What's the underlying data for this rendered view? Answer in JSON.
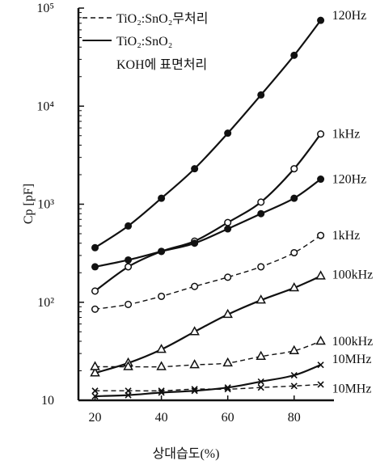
{
  "chart_data": {
    "type": "line",
    "xlabel": "상대습도(%)",
    "ylabel": "Cp [pF]",
    "x_ticks": [
      20,
      40,
      60,
      80
    ],
    "y_ticks": [
      {
        "value": 10,
        "label": "10"
      },
      {
        "value": 100,
        "label": "10²"
      },
      {
        "value": 1000,
        "label": "10³"
      },
      {
        "value": 10000,
        "label": "10⁴"
      },
      {
        "value": 100000,
        "label": "10⁵"
      }
    ],
    "xlim": [
      15,
      92
    ],
    "ylim": [
      10,
      100000
    ],
    "y_scale": "log",
    "legend": {
      "position": "top-left",
      "entries": [
        {
          "label": "TiO₂:SnO₂무처리",
          "style": "dashed"
        },
        {
          "label": "TiO₂:SnO₂",
          "style": "solid"
        },
        {
          "label": "KOH에 표면처리",
          "style": "none"
        }
      ]
    },
    "series": [
      {
        "label": "120Hz",
        "group": "treated",
        "style": "solid",
        "marker": "filled-circle",
        "x": [
          20,
          30,
          40,
          50,
          60,
          70,
          80,
          88
        ],
        "y": [
          360,
          600,
          1150,
          2300,
          5300,
          13000,
          33000,
          75000
        ]
      },
      {
        "label": "1kHz",
        "group": "treated",
        "style": "solid",
        "marker": "open-circle",
        "x": [
          20,
          30,
          40,
          50,
          60,
          70,
          80,
          88
        ],
        "y": [
          130,
          230,
          330,
          420,
          650,
          1050,
          2300,
          5200
        ]
      },
      {
        "label": "120Hz",
        "group": "untreated",
        "style": "solid",
        "marker": "filled-circle",
        "x": [
          20,
          30,
          40,
          50,
          60,
          70,
          80,
          88
        ],
        "y": [
          230,
          270,
          330,
          400,
          560,
          800,
          1150,
          1800
        ]
      },
      {
        "label": "1kHz",
        "group": "untreated",
        "style": "dashed",
        "marker": "open-circle",
        "x": [
          20,
          30,
          40,
          50,
          60,
          70,
          80,
          88
        ],
        "y": [
          85,
          95,
          115,
          145,
          180,
          230,
          320,
          480
        ]
      },
      {
        "label": "100kHz",
        "group": "treated",
        "style": "solid",
        "marker": "open-triangle",
        "x": [
          20,
          30,
          40,
          50,
          60,
          70,
          80,
          88
        ],
        "y": [
          19,
          24,
          33,
          50,
          75,
          105,
          140,
          185
        ]
      },
      {
        "label": "100kHz",
        "group": "untreated",
        "style": "dashed",
        "marker": "open-triangle",
        "x": [
          20,
          30,
          40,
          50,
          60,
          70,
          80,
          88
        ],
        "y": [
          22,
          22,
          22,
          23,
          24,
          28,
          32,
          40
        ]
      },
      {
        "label": "10MHz",
        "group": "treated",
        "style": "solid",
        "marker": "cross",
        "x": [
          20,
          30,
          40,
          50,
          60,
          70,
          80,
          88
        ],
        "y": [
          11,
          11.3,
          12,
          12.5,
          13.5,
          15.5,
          18,
          23
        ]
      },
      {
        "label": "10MHz",
        "group": "untreated",
        "style": "dashed",
        "marker": "cross",
        "x": [
          20,
          30,
          40,
          50,
          60,
          70,
          80,
          88
        ],
        "y": [
          12.5,
          12.5,
          12.5,
          13,
          13,
          13.5,
          14,
          14.5
        ]
      }
    ]
  }
}
